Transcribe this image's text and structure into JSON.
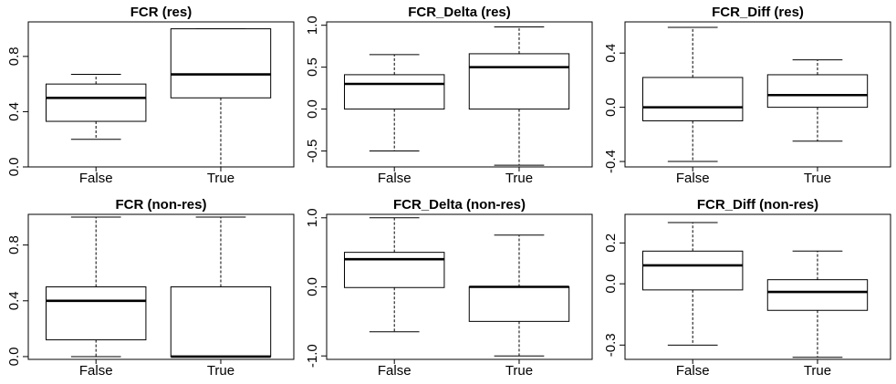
{
  "chart_data": [
    {
      "type": "box",
      "title": "FCR (res)",
      "categories": [
        "False",
        "True"
      ],
      "yticks": [
        "0.0",
        "0.4",
        "0.8"
      ],
      "ylim": [
        0,
        1.05
      ],
      "boxes": [
        {
          "category": "False",
          "min": 0.2,
          "q1": 0.33,
          "median": 0.5,
          "q3": 0.6,
          "max": 0.67
        },
        {
          "category": "True",
          "min": 0.0,
          "q1": 0.5,
          "median": 0.67,
          "q3": 1.0,
          "max": 1.0
        }
      ]
    },
    {
      "type": "box",
      "title": "FCR_Delta (res)",
      "categories": [
        "False",
        "True"
      ],
      "yticks": [
        "-0.5",
        "0.0",
        "0.5",
        "1.0"
      ],
      "ylim": [
        -0.69,
        1.04
      ],
      "boxes": [
        {
          "category": "False",
          "min": -0.5,
          "q1": 0.0,
          "median": 0.3,
          "q3": 0.41,
          "max": 0.65
        },
        {
          "category": "True",
          "min": -0.67,
          "q1": 0.0,
          "median": 0.5,
          "q3": 0.66,
          "max": 0.98
        }
      ]
    },
    {
      "type": "box",
      "title": "FCR_Diff (res)",
      "categories": [
        "False",
        "True"
      ],
      "yticks": [
        "-0.4",
        "0.0",
        "0.4"
      ],
      "ylim": [
        -0.44,
        0.63
      ],
      "boxes": [
        {
          "category": "False",
          "min": -0.4,
          "q1": -0.1,
          "median": 0.0,
          "q3": 0.22,
          "max": 0.59
        },
        {
          "category": "True",
          "min": -0.25,
          "q1": 0.0,
          "median": 0.09,
          "q3": 0.24,
          "max": 0.35
        }
      ]
    },
    {
      "type": "box",
      "title": "FCR (non-res)",
      "categories": [
        "False",
        "True"
      ],
      "yticks": [
        "0.0",
        "0.4",
        "0.8"
      ],
      "ylim": [
        -0.02,
        1.02
      ],
      "boxes": [
        {
          "category": "False",
          "min": 0.0,
          "q1": 0.12,
          "median": 0.4,
          "q3": 0.5,
          "max": 1.0
        },
        {
          "category": "True",
          "min": 0.0,
          "q1": 0.0,
          "median": 0.0,
          "q3": 0.5,
          "max": 1.0
        }
      ]
    },
    {
      "type": "box",
      "title": "FCR_Delta (non-res)",
      "categories": [
        "False",
        "True"
      ],
      "yticks": [
        "-1.0",
        "0.0",
        "1.0"
      ],
      "ylim": [
        -1.05,
        1.05
      ],
      "boxes": [
        {
          "category": "False",
          "min": -0.65,
          "q1": -0.01,
          "median": 0.4,
          "q3": 0.5,
          "max": 1.0
        },
        {
          "category": "True",
          "min": -1.0,
          "q1": -0.5,
          "median": 0.0,
          "q3": 0.0,
          "max": 0.75
        }
      ]
    },
    {
      "type": "box",
      "title": "FCR_Diff (non-res)",
      "categories": [
        "False",
        "True"
      ],
      "yticks": [
        "-0.3",
        "0.0",
        "0.2"
      ],
      "ylim": [
        -0.37,
        0.34
      ],
      "boxes": [
        {
          "category": "False",
          "min": -0.3,
          "q1": -0.03,
          "median": 0.09,
          "q3": 0.16,
          "max": 0.3
        },
        {
          "category": "True",
          "min": -0.36,
          "q1": -0.13,
          "median": -0.04,
          "q3": 0.02,
          "max": 0.16
        }
      ]
    }
  ]
}
